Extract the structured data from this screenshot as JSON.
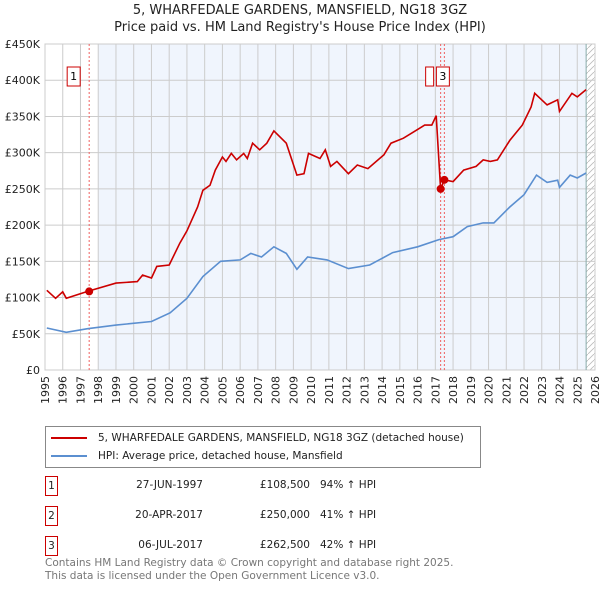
{
  "chart_data": {
    "type": "line",
    "title": "5, WHARFEDALE GARDENS, MANSFIELD, NG18 3GZ",
    "subtitle": "Price paid vs. HM Land Registry's House Price Index (HPI)",
    "xlim": [
      1995,
      2026
    ],
    "ylim": [
      0,
      450000
    ],
    "x_ticks": [
      "1995",
      "1996",
      "1997",
      "1998",
      "1999",
      "2000",
      "2001",
      "2002",
      "2003",
      "2004",
      "2005",
      "2006",
      "2007",
      "2008",
      "2009",
      "2010",
      "2011",
      "2012",
      "2013",
      "2014",
      "2015",
      "2016",
      "2017",
      "2018",
      "2019",
      "2020",
      "2021",
      "2022",
      "2023",
      "2024",
      "2025",
      "2026"
    ],
    "y_ticks": [
      {
        "v": 0,
        "label": "£0"
      },
      {
        "v": 50000,
        "label": "£50K"
      },
      {
        "v": 100000,
        "label": "£100K"
      },
      {
        "v": 150000,
        "label": "£150K"
      },
      {
        "v": 200000,
        "label": "£200K"
      },
      {
        "v": 250000,
        "label": "£250K"
      },
      {
        "v": 300000,
        "label": "£300K"
      },
      {
        "v": 350000,
        "label": "£350K"
      },
      {
        "v": 400000,
        "label": "£400K"
      },
      {
        "v": 450000,
        "label": "£450K"
      }
    ],
    "grid": true,
    "shaded_range": [
      1998,
      2025.5
    ],
    "hatched_from": 2025.5,
    "series": [
      {
        "name": "5, WHARFEDALE GARDENS, MANSFIELD, NG18 3GZ (detached house)",
        "color": "#cc0000",
        "x": [
          1995.1,
          1995.6,
          1996.0,
          1996.2,
          1997.4,
          1999.0,
          2000.2,
          2000.5,
          2001.0,
          2001.3,
          2002.0,
          2002.6,
          2003.0,
          2003.6,
          2003.9,
          2004.3,
          2004.6,
          2005.0,
          2005.2,
          2005.5,
          2005.8,
          2006.2,
          2006.4,
          2006.7,
          2007.1,
          2007.5,
          2007.9,
          2008.6,
          2009.2,
          2009.6,
          2009.85,
          2010.5,
          2010.8,
          2011.1,
          2011.45,
          2012.1,
          2012.6,
          2013.2,
          2014.1,
          2014.5,
          2015.2,
          2015.8,
          2016.4,
          2016.8,
          2017.05,
          2017.3,
          2017.51,
          2018.0,
          2018.6,
          2019.3,
          2019.7,
          2020.1,
          2020.5,
          2021.2,
          2021.9,
          2022.4,
          2022.6,
          2023.3,
          2023.9,
          2024.0,
          2024.7,
          2025.0,
          2025.5
        ],
        "y": [
          110,
          99,
          108,
          99,
          108.5,
          120,
          122,
          131,
          127,
          143,
          145,
          175,
          192,
          225,
          248,
          255,
          276,
          294,
          288,
          299,
          290,
          299,
          292,
          313,
          304,
          313,
          330,
          313,
          269,
          271,
          299,
          292,
          304,
          281,
          288,
          271,
          283,
          278,
          297,
          313,
          320,
          329,
          338,
          338,
          351,
          250,
          262.5,
          260,
          276,
          281,
          290,
          288,
          290,
          317,
          338,
          363,
          382,
          366,
          373,
          357,
          382,
          377,
          387
        ],
        "y_unit": "thousand GBP"
      },
      {
        "name": "HPI: Average price, detached house, Mansfield",
        "color": "#5b8fd0",
        "x": [
          1995.1,
          1996.2,
          1997.4,
          1999.0,
          2001.0,
          2002.05,
          2003.0,
          2003.9,
          2004.9,
          2006.0,
          2006.6,
          2007.2,
          2007.9,
          2008.6,
          2009.2,
          2009.8,
          2010.9,
          2012.1,
          2013.3,
          2014.6,
          2016.0,
          2017.2,
          2018.0,
          2018.8,
          2019.7,
          2020.3,
          2021.2,
          2022.0,
          2022.7,
          2023.3,
          2023.9,
          2024.0,
          2024.6,
          2025.0,
          2025.5
        ],
        "y": [
          58,
          52,
          57,
          62,
          67,
          79,
          99,
          129,
          150,
          152,
          161,
          156,
          170,
          161,
          139,
          156,
          152,
          140,
          145,
          162,
          170,
          180,
          184,
          198,
          203,
          203,
          225,
          242,
          269,
          259,
          262,
          252,
          269,
          265,
          272
        ],
        "y_unit": "thousand GBP"
      }
    ],
    "sales": [
      {
        "id": "1",
        "x": 1997.49,
        "value": 108500,
        "date": "27-JUN-1997",
        "price": "£108,500",
        "hpi": "94% ↑ HPI"
      },
      {
        "id": "2",
        "x": 2017.3,
        "value": 250000,
        "date": "20-APR-2017",
        "price": "£250,000",
        "hpi": "41% ↑ HPI"
      },
      {
        "id": "3",
        "x": 2017.51,
        "value": 262500,
        "date": "06-JUL-2017",
        "price": "£262,500",
        "hpi": "42% ↑ HPI"
      }
    ]
  },
  "legend": {
    "red": "5, WHARFEDALE GARDENS, MANSFIELD, NG18 3GZ (detached house)",
    "blue": "HPI: Average price, detached house, Mansfield"
  },
  "footer": {
    "line1": "Contains HM Land Registry data © Crown copyright and database right 2025.",
    "line2": "This data is licensed under the Open Government Licence v3.0."
  }
}
